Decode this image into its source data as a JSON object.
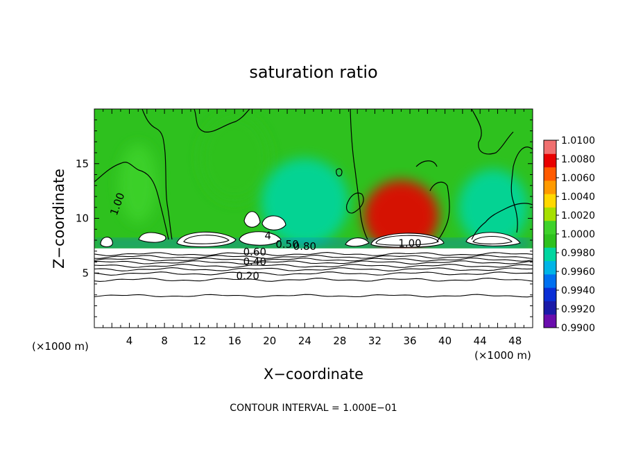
{
  "chart_data": {
    "type": "heatmap",
    "title": "saturation ratio",
    "xlabel": "X−coordinate",
    "ylabel": "Z−coordinate",
    "x_unit_left": "(×1000 m)",
    "x_unit_right": "(×1000 m)",
    "xlim": [
      0,
      50
    ],
    "ylim": [
      0,
      20
    ],
    "x_ticks": [
      4,
      8,
      12,
      16,
      20,
      24,
      28,
      32,
      36,
      40,
      44,
      48
    ],
    "y_ticks": [
      5,
      10,
      15
    ],
    "footer": "CONTOUR INTERVAL = 1.000E−01",
    "colorbar": {
      "min": 0.99,
      "max": 1.01,
      "ticks": [
        "1.0100",
        "1.0080",
        "1.0060",
        "1.0040",
        "1.0020",
        "1.0000",
        "0.9980",
        "0.9960",
        "0.9940",
        "0.9920",
        "0.9900"
      ],
      "colors": [
        "#6a0dad",
        "#1a1aa8",
        "#0a2fd6",
        "#0070f0",
        "#00b4e6",
        "#00d6a0",
        "#2ec11e",
        "#3ed22a",
        "#a6e000",
        "#ffd800",
        "#ff9a00",
        "#ff5a00",
        "#e80000",
        "#f07070"
      ]
    },
    "contour_labels": [
      {
        "text": "1.00",
        "x": 3,
        "y": 11.2
      },
      {
        "text": "1.00",
        "x": 36,
        "y": 7.4
      },
      {
        "text": "0.60",
        "x": 18.3,
        "y": 6.6
      },
      {
        "text": "0.40",
        "x": 18.3,
        "y": 5.7
      },
      {
        "text": "0.20",
        "x": 17.5,
        "y": 4.4
      },
      {
        "text": "0.50",
        "x": 22,
        "y": 7.3
      },
      {
        "text": "0.80",
        "x": 24,
        "y": 7.1
      },
      {
        "text": "4",
        "x": 19.8,
        "y": 8.1
      }
    ],
    "field_features": [
      {
        "type": "background",
        "value": 0.9995
      },
      {
        "type": "bubble",
        "x": 35,
        "y": 10.2,
        "rx": 4.3,
        "ry": 3.3,
        "value": 1.0072
      },
      {
        "type": "bubble",
        "x": 5,
        "y": 13.2,
        "rx": 2.2,
        "ry": 3.6,
        "value": 1.0012
      },
      {
        "type": "bubble",
        "x": 16,
        "y": 15.5,
        "rx": 4,
        "ry": 4,
        "value": 0.9988
      },
      {
        "type": "bubble",
        "x": 24,
        "y": 11.5,
        "rx": 5,
        "ry": 4,
        "value": 0.9978
      },
      {
        "type": "bubble",
        "x": 45.5,
        "y": 11,
        "rx": 4,
        "ry": 3.5,
        "value": 0.9982
      },
      {
        "type": "band",
        "y": 7.6,
        "value": 0.9952
      }
    ]
  }
}
